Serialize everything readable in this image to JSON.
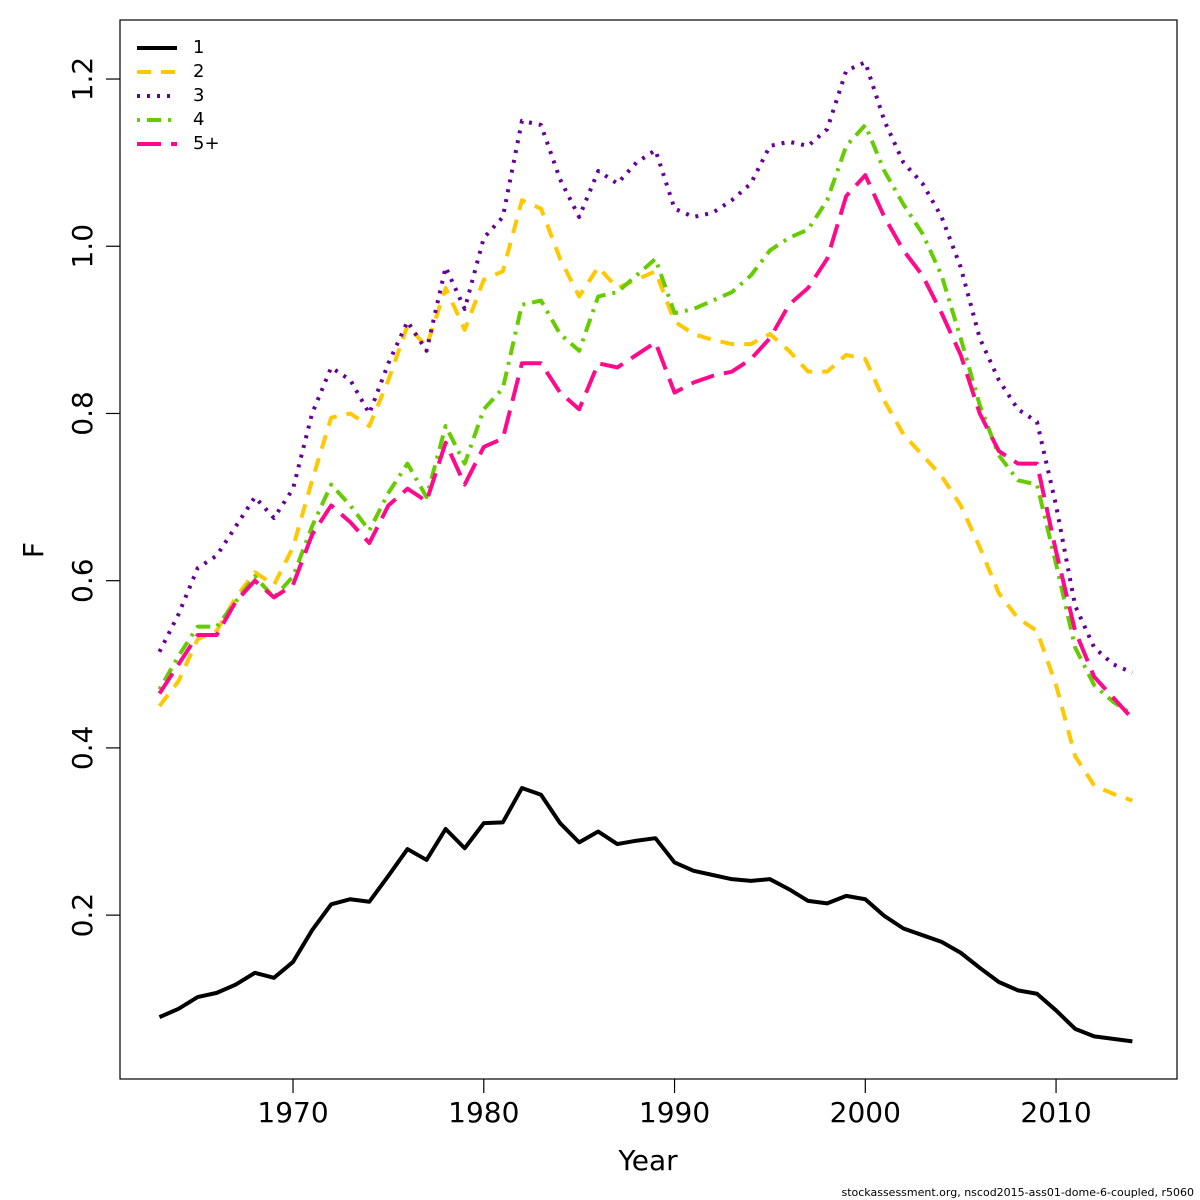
{
  "chart_data": {
    "type": "line",
    "xlabel": "Year",
    "ylabel": "F",
    "caption": "stockassessment.org, nscod2015-ass01-dome-6-coupled, r5060",
    "legend": "top-left",
    "x": [
      1963,
      1964,
      1965,
      1966,
      1967,
      1968,
      1969,
      1970,
      1971,
      1972,
      1973,
      1974,
      1975,
      1976,
      1977,
      1978,
      1979,
      1980,
      1981,
      1982,
      1983,
      1984,
      1985,
      1986,
      1987,
      1988,
      1989,
      1990,
      1991,
      1992,
      1993,
      1994,
      1995,
      1996,
      1997,
      1998,
      1999,
      2000,
      2001,
      2002,
      2003,
      2004,
      2005,
      2006,
      2007,
      2008,
      2009,
      2010,
      2011,
      2012,
      2013,
      2014
    ],
    "xlim": [
      1960.93,
      2016.34
    ],
    "xticks": [
      1970,
      1980,
      1990,
      2000,
      2010
    ],
    "ylim": [
      0.004,
      1.2706
    ],
    "yticks": [
      0.2,
      0.4,
      0.6,
      0.8,
      {
        "value": 1,
        "label": "1.0"
      },
      1.2
    ],
    "series": [
      {
        "name": "1",
        "color": "#000000",
        "style": "solid",
        "values": [
          0.078,
          0.088,
          0.102,
          0.107,
          0.117,
          0.131,
          0.125,
          0.144,
          0.182,
          0.213,
          0.219,
          0.216,
          0.247,
          0.279,
          0.266,
          0.303,
          0.28,
          0.31,
          0.311,
          0.352,
          0.344,
          0.31,
          0.287,
          0.3,
          0.285,
          0.289,
          0.292,
          0.263,
          0.253,
          0.248,
          0.243,
          0.241,
          0.243,
          0.231,
          0.217,
          0.214,
          0.223,
          0.219,
          0.199,
          0.184,
          0.176,
          0.168,
          0.155,
          0.137,
          0.12,
          0.11,
          0.106,
          0.086,
          0.064,
          0.055,
          0.052,
          0.049
        ]
      },
      {
        "name": "2",
        "color": "#FFC800",
        "style": "dashed",
        "values": [
          0.45,
          0.48,
          0.53,
          0.54,
          0.58,
          0.61,
          0.595,
          0.64,
          0.72,
          0.795,
          0.8,
          0.785,
          0.84,
          0.905,
          0.88,
          0.95,
          0.9,
          0.96,
          0.97,
          1.055,
          1.045,
          0.985,
          0.94,
          0.975,
          0.95,
          0.96,
          0.97,
          0.91,
          0.895,
          0.888,
          0.883,
          0.883,
          0.895,
          0.875,
          0.85,
          0.85,
          0.87,
          0.865,
          0.815,
          0.775,
          0.75,
          0.725,
          0.69,
          0.64,
          0.585,
          0.555,
          0.54,
          0.475,
          0.39,
          0.355,
          0.345,
          0.337
        ]
      },
      {
        "name": "3",
        "color": "#660099",
        "style": "dotted",
        "values": [
          0.515,
          0.56,
          0.615,
          0.63,
          0.665,
          0.7,
          0.675,
          0.71,
          0.8,
          0.855,
          0.84,
          0.8,
          0.86,
          0.91,
          0.875,
          0.975,
          0.925,
          1.01,
          1.035,
          1.15,
          1.145,
          1.08,
          1.035,
          1.09,
          1.075,
          1.1,
          1.115,
          1.045,
          1.035,
          1.04,
          1.055,
          1.075,
          1.12,
          1.125,
          1.12,
          1.14,
          1.21,
          1.22,
          1.15,
          1.1,
          1.075,
          1.035,
          0.975,
          0.89,
          0.84,
          0.805,
          0.79,
          0.69,
          0.57,
          0.52,
          0.5,
          0.49
        ]
      },
      {
        "name": "4",
        "color": "#66CC00",
        "style": "dotdash",
        "values": [
          0.47,
          0.51,
          0.545,
          0.545,
          0.575,
          0.605,
          0.58,
          0.605,
          0.665,
          0.715,
          0.69,
          0.66,
          0.705,
          0.74,
          0.7,
          0.785,
          0.74,
          0.805,
          0.83,
          0.93,
          0.935,
          0.895,
          0.875,
          0.94,
          0.945,
          0.965,
          0.985,
          0.92,
          0.925,
          0.935,
          0.945,
          0.965,
          0.995,
          1.01,
          1.02,
          1.055,
          1.12,
          1.145,
          1.09,
          1.05,
          1.015,
          0.965,
          0.89,
          0.81,
          0.75,
          0.72,
          0.715,
          0.62,
          0.52,
          0.475,
          0.455,
          0.44
        ]
      },
      {
        "name": "5+",
        "color": "#FF0A8C",
        "style": "longdash",
        "values": [
          0.465,
          0.5,
          0.535,
          0.535,
          0.575,
          0.6,
          0.58,
          0.595,
          0.655,
          0.69,
          0.67,
          0.645,
          0.69,
          0.71,
          0.695,
          0.765,
          0.715,
          0.76,
          0.77,
          0.86,
          0.86,
          0.825,
          0.805,
          0.86,
          0.855,
          0.87,
          0.885,
          0.825,
          0.837,
          0.845,
          0.85,
          0.865,
          0.89,
          0.93,
          0.95,
          0.985,
          1.06,
          1.085,
          1.035,
          0.995,
          0.965,
          0.92,
          0.87,
          0.8,
          0.755,
          0.74,
          0.74,
          0.635,
          0.54,
          0.485,
          0.46,
          0.435
        ]
      }
    ]
  }
}
